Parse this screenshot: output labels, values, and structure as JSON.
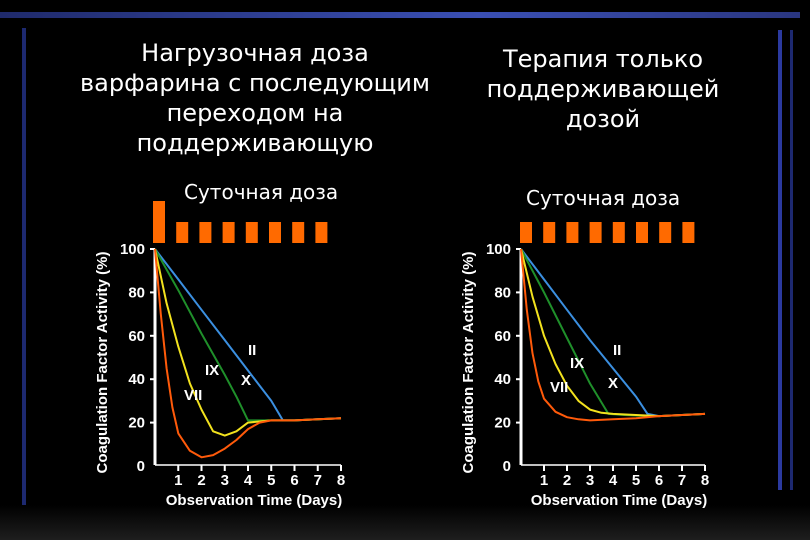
{
  "slide": {
    "title_left": "Нагрузочная доза\nварфарина с последующим\nпереходом на\nподдерживающую",
    "title_right": "Терапия только\nподдерживающей\nдозой",
    "dose_label_left": "Суточная доза",
    "dose_label_right": "Суточная доза"
  },
  "colors": {
    "dose_block": "#ff6a00",
    "II": "#3b8fe0",
    "X": "#1f8f2a",
    "IX": "#f2e21e",
    "VII": "#ff5a0a",
    "axes": "#ffffff"
  },
  "chart_data": [
    {
      "type": "line",
      "title": "",
      "xlabel": "Observation Time (Days)",
      "ylabel": "Coagulation Factor Activity (%)",
      "xlim": [
        0,
        8
      ],
      "ylim": [
        0,
        100
      ],
      "xticks": [
        1,
        2,
        3,
        4,
        5,
        6,
        7,
        8
      ],
      "yticks": [
        0,
        20,
        40,
        60,
        80,
        100
      ],
      "daily_dose": [
        2,
        1,
        1,
        1,
        1,
        1,
        1,
        1
      ],
      "series": [
        {
          "name": "II",
          "x": [
            0,
            1,
            2,
            3,
            4,
            5,
            5.5,
            6,
            7,
            8
          ],
          "y": [
            100,
            86,
            72,
            58,
            44,
            30,
            21,
            21,
            21.5,
            22
          ]
        },
        {
          "name": "X",
          "x": [
            0,
            1,
            2,
            3,
            3.5,
            4,
            5,
            6,
            7,
            8
          ],
          "y": [
            100,
            81,
            61,
            42,
            32,
            21,
            21,
            21,
            21.5,
            22
          ]
        },
        {
          "name": "IX",
          "x": [
            0,
            0.5,
            1,
            1.5,
            2,
            2.5,
            3,
            3.5,
            4,
            5,
            6,
            7,
            8
          ],
          "y": [
            100,
            75,
            55,
            38,
            26,
            16,
            14,
            16,
            20,
            21,
            21,
            21.5,
            22
          ]
        },
        {
          "name": "VII",
          "x": [
            0,
            0.25,
            0.5,
            0.75,
            1,
            1.5,
            2,
            2.5,
            3,
            3.5,
            4,
            4.5,
            5,
            6,
            7,
            8
          ],
          "y": [
            100,
            70,
            45,
            27,
            15,
            7,
            4,
            5,
            8,
            12,
            17,
            20,
            21,
            21,
            21.5,
            22
          ]
        }
      ]
    },
    {
      "type": "line",
      "title": "",
      "xlabel": "Observation Time (Days)",
      "ylabel": "Coagulation Factor Activity (%)",
      "xlim": [
        0,
        8
      ],
      "ylim": [
        0,
        100
      ],
      "xticks": [
        1,
        2,
        3,
        4,
        5,
        6,
        7,
        8
      ],
      "yticks": [
        0,
        20,
        40,
        60,
        80,
        100
      ],
      "daily_dose": [
        1,
        1,
        1,
        1,
        1,
        1,
        1,
        1
      ],
      "series": [
        {
          "name": "II",
          "x": [
            0,
            1,
            2,
            3,
            4,
            5,
            5.5,
            6,
            7,
            8
          ],
          "y": [
            100,
            86,
            72,
            58,
            45,
            32,
            24,
            23,
            23.5,
            24
          ]
        },
        {
          "name": "X",
          "x": [
            0,
            1,
            2,
            3,
            3.8,
            4.5,
            5.5,
            6,
            7,
            8
          ],
          "y": [
            100,
            80,
            59,
            38,
            24,
            23.5,
            23,
            23,
            23.5,
            24
          ]
        },
        {
          "name": "IX",
          "x": [
            0,
            0.5,
            1,
            1.5,
            2,
            2.5,
            3,
            3.5,
            4,
            5,
            6,
            7,
            8
          ],
          "y": [
            100,
            78,
            60,
            47,
            37,
            30,
            26,
            24.5,
            24,
            23.5,
            23,
            23.5,
            24
          ]
        },
        {
          "name": "VII",
          "x": [
            0,
            0.25,
            0.5,
            0.75,
            1,
            1.5,
            2,
            2.5,
            3,
            4,
            5,
            6,
            7,
            8
          ],
          "y": [
            100,
            72,
            52,
            39,
            31,
            25,
            22.5,
            21.5,
            21,
            21.5,
            22,
            23,
            23.5,
            24
          ]
        }
      ]
    }
  ]
}
